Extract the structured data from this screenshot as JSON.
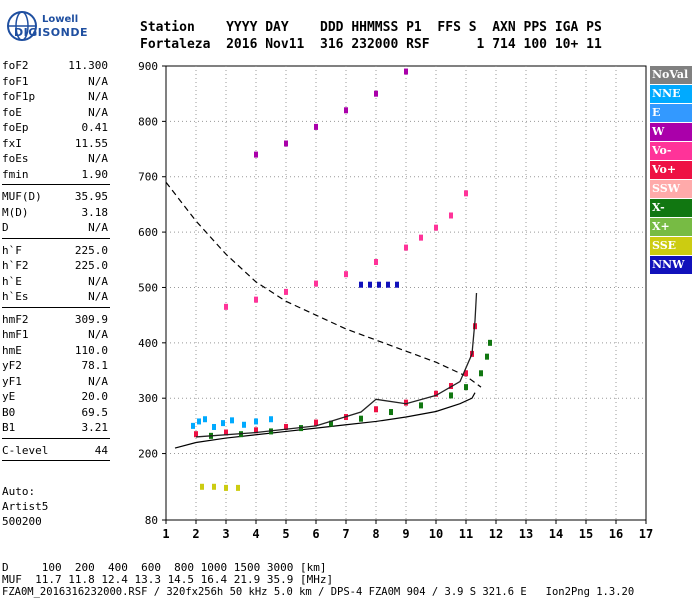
{
  "logo": {
    "brand_top": "Lowell",
    "brand_bottom": "DIGISONDE"
  },
  "header": {
    "line1": "Station    YYYY DAY    DDD HHMMSS P1  FFS S  AXN PPS IGA PS",
    "line2": "Fortaleza  2016 Nov11  316 232000 RSF      1 714 100 10+ 11"
  },
  "params_group1": [
    {
      "k": "foF2",
      "v": "11.300"
    },
    {
      "k": "foF1",
      "v": "N/A"
    },
    {
      "k": "foF1p",
      "v": "N/A"
    },
    {
      "k": "foE",
      "v": "N/A"
    },
    {
      "k": "foEp",
      "v": "0.41"
    },
    {
      "k": "fxI",
      "v": "11.55"
    },
    {
      "k": "foEs",
      "v": "N/A"
    },
    {
      "k": "fmin",
      "v": "1.90"
    }
  ],
  "params_group2": [
    {
      "k": "MUF(D)",
      "v": "35.95"
    },
    {
      "k": "M(D)",
      "v": "3.18"
    },
    {
      "k": "D",
      "v": "N/A"
    }
  ],
  "params_group3": [
    {
      "k": "h`F",
      "v": "225.0"
    },
    {
      "k": "h`F2",
      "v": "225.0"
    },
    {
      "k": "h`E",
      "v": "N/A"
    },
    {
      "k": "h`Es",
      "v": "N/A"
    }
  ],
  "params_group4": [
    {
      "k": "hmF2",
      "v": "309.9"
    },
    {
      "k": "hmF1",
      "v": "N/A"
    },
    {
      "k": "hmE",
      "v": "110.0"
    },
    {
      "k": "yF2",
      "v": "78.1"
    },
    {
      "k": "yF1",
      "v": "N/A"
    },
    {
      "k": "yE",
      "v": "20.0"
    },
    {
      "k": "B0",
      "v": "69.5"
    },
    {
      "k": "B1",
      "v": "3.21"
    }
  ],
  "params_group5": [
    {
      "k": "C-level",
      "v": "44"
    }
  ],
  "auto": {
    "l1": "Auto:",
    "l2": "Artist5",
    "l3": "500200"
  },
  "footer": {
    "line1": "D     100  200  400  600  800 1000 1500 3000 [km]",
    "line2": "MUF  11.7 11.8 12.4 13.3 14.5 16.4 21.9 35.9 [MHz]",
    "line3": "FZA0M_2016316232000.RSF / 320fx256h 50 kHz 5.0 km / DPS-4 FZA0M 904 / 3.9 S 321.6 E   Ion2Png 1.3.20"
  },
  "legend": [
    {
      "label": "NoVal",
      "bg": "#808080",
      "fg": "#ffffff"
    },
    {
      "label": "NNE",
      "bg": "#00aaff",
      "fg": "#ffffff"
    },
    {
      "label": "E",
      "bg": "#3399ff",
      "fg": "#ffffff"
    },
    {
      "label": "W",
      "bg": "#aa00aa",
      "fg": "#ffffff"
    },
    {
      "label": "Vo-",
      "bg": "#ff3399",
      "fg": "#ffffff"
    },
    {
      "label": "Vo+",
      "bg": "#ee1144",
      "fg": "#ffffff"
    },
    {
      "label": "SSW",
      "bg": "#ffaaaa",
      "fg": "#ffffff"
    },
    {
      "label": "X-",
      "bg": "#117711",
      "fg": "#ffffff"
    },
    {
      "label": "X+",
      "bg": "#77bb44",
      "fg": "#ffffff"
    },
    {
      "label": "SSE",
      "bg": "#cccc11",
      "fg": "#ffffff"
    },
    {
      "label": "NNW",
      "bg": "#1111bb",
      "fg": "#ffffff"
    }
  ],
  "chart_data": {
    "type": "scatter",
    "title": "",
    "xlabel": "",
    "ylabel": "",
    "xlim": [
      1,
      17
    ],
    "ylim": [
      80,
      900
    ],
    "x_ticks": [
      1,
      2,
      3,
      4,
      5,
      6,
      7,
      8,
      9,
      10,
      11,
      12,
      13,
      14,
      15,
      16,
      17
    ],
    "y_ticks": [
      80,
      200,
      300,
      400,
      500,
      600,
      700,
      800,
      900
    ],
    "grid": true,
    "legend_position": "right",
    "series": [
      {
        "name": "Vo+",
        "color": "#ee1144",
        "x": [
          2.0,
          3.0,
          4.0,
          5.0,
          6.0,
          7.0,
          8.0,
          9.0,
          10.0,
          10.5,
          11.0,
          11.2,
          11.3
        ],
        "y": [
          235,
          238,
          242,
          248,
          256,
          266,
          280,
          292,
          308,
          322,
          345,
          380,
          430
        ]
      },
      {
        "name": "X-",
        "color": "#117711",
        "x": [
          2.5,
          3.5,
          4.5,
          5.5,
          6.5,
          7.5,
          8.5,
          9.5,
          10.5,
          11.0,
          11.5,
          11.7,
          11.8
        ],
        "y": [
          232,
          235,
          240,
          246,
          254,
          263,
          275,
          287,
          305,
          320,
          345,
          375,
          400
        ]
      },
      {
        "name": "Vo-",
        "color": "#ff3399",
        "x": [
          3.0,
          4.0,
          5.0,
          6.0,
          7.0,
          8.0,
          9.0,
          9.5,
          10.0,
          10.5,
          11.0
        ],
        "y": [
          465,
          478,
          492,
          507,
          524,
          546,
          572,
          590,
          608,
          630,
          670
        ]
      },
      {
        "name": "W",
        "color": "#aa00aa",
        "x": [
          4.0,
          5.0,
          6.0,
          7.0,
          8.0,
          9.0
        ],
        "y": [
          740,
          760,
          790,
          820,
          850,
          890
        ]
      },
      {
        "name": "NNE",
        "color": "#00aaff",
        "x": [
          1.9,
          2.1,
          2.3,
          2.6,
          2.9,
          3.2,
          3.6,
          4.0,
          4.5
        ],
        "y": [
          250,
          258,
          262,
          248,
          255,
          260,
          252,
          258,
          262
        ]
      },
      {
        "name": "NNW",
        "color": "#1111bb",
        "x": [
          7.5,
          7.8,
          8.1,
          8.4,
          8.7
        ],
        "y": [
          505,
          505,
          505,
          505,
          505
        ]
      },
      {
        "name": "SSE",
        "color": "#cccc11",
        "x": [
          2.2,
          2.6,
          3.0,
          3.4
        ],
        "y": [
          140,
          140,
          138,
          138
        ]
      }
    ],
    "profile_dashed": {
      "x": [
        1.0,
        2.0,
        3.0,
        4.0,
        5.0,
        6.0,
        7.0,
        8.0,
        9.0,
        10.0,
        11.0,
        11.5
      ],
      "y": [
        690,
        620,
        560,
        510,
        475,
        450,
        425,
        405,
        385,
        365,
        340,
        320
      ]
    },
    "profile_solid": {
      "x": [
        1.3,
        2.0,
        3.0,
        4.0,
        5.0,
        6.0,
        7.0,
        8.0,
        9.0,
        10.0,
        10.8,
        11.2,
        11.3
      ],
      "y": [
        210,
        220,
        228,
        234,
        240,
        246,
        252,
        258,
        266,
        276,
        290,
        300,
        310
      ]
    },
    "trace_black": {
      "x": [
        2.0,
        4.0,
        6.0,
        7.5,
        8.0,
        9.0,
        10.0,
        10.8,
        11.2,
        11.3,
        11.35
      ],
      "y": [
        230,
        238,
        250,
        275,
        298,
        290,
        305,
        330,
        380,
        440,
        490
      ]
    }
  }
}
